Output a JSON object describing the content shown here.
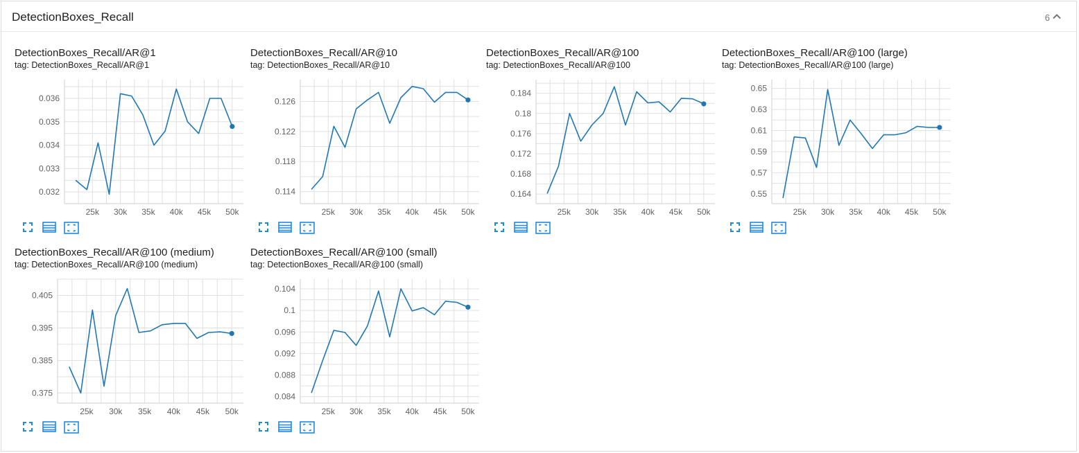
{
  "card": {
    "title": "DetectionBoxes_Recall",
    "count": "6",
    "collapse_icon": "chevron-up-icon"
  },
  "colors": {
    "line": "#1f77b4",
    "grid": "#e0e0e0",
    "axis": "#616161",
    "icon": "#1e88e5"
  },
  "charts": [
    {
      "title": "DetectionBoxes_Recall/AR@1",
      "tag": "tag: DetectionBoxes_Recall/AR@1"
    },
    {
      "title": "DetectionBoxes_Recall/AR@10",
      "tag": "tag: DetectionBoxes_Recall/AR@10"
    },
    {
      "title": "DetectionBoxes_Recall/AR@100",
      "tag": "tag: DetectionBoxes_Recall/AR@100"
    },
    {
      "title": "DetectionBoxes_Recall/AR@100 (large)",
      "tag": "tag: DetectionBoxes_Recall/AR@100 (large)"
    },
    {
      "title": "DetectionBoxes_Recall/AR@100 (medium)",
      "tag": "tag: DetectionBoxes_Recall/AR@100 (medium)"
    },
    {
      "title": "DetectionBoxes_Recall/AR@100 (small)",
      "tag": "tag: DetectionBoxes_Recall/AR@100 (small)"
    }
  ],
  "toolbar_icons": [
    "fullscreen-icon",
    "data-table-icon",
    "fit-domain-icon"
  ],
  "chart_data": [
    {
      "type": "line",
      "title": "DetectionBoxes_Recall/AR@1",
      "x": [
        22000,
        24000,
        26000,
        28000,
        30000,
        32000,
        34000,
        36000,
        38000,
        40000,
        42000,
        44000,
        46000,
        48000,
        50000
      ],
      "values": [
        0.0325,
        0.0321,
        0.0341,
        0.0319,
        0.0362,
        0.0361,
        0.0353,
        0.034,
        0.0346,
        0.0364,
        0.035,
        0.0345,
        0.036,
        0.036,
        0.0348
      ],
      "xlim": [
        20000,
        52000
      ],
      "ylim": [
        0.0315,
        0.0368
      ],
      "xticks": [
        25000,
        30000,
        35000,
        40000,
        45000,
        50000
      ],
      "xtick_labels": [
        "25k",
        "30k",
        "35k",
        "40k",
        "45k",
        "50k"
      ],
      "yticks": [
        0.032,
        0.033,
        0.034,
        0.035,
        0.036
      ],
      "ytick_labels": [
        "0.032",
        "0.033",
        "0.034",
        "0.035",
        "0.036"
      ],
      "grid": true
    },
    {
      "type": "line",
      "title": "DetectionBoxes_Recall/AR@10",
      "x": [
        22000,
        24000,
        26000,
        28000,
        30000,
        32000,
        34000,
        36000,
        38000,
        40000,
        42000,
        44000,
        46000,
        48000,
        50000
      ],
      "values": [
        0.1143,
        0.116,
        0.1227,
        0.1199,
        0.125,
        0.1262,
        0.1272,
        0.1231,
        0.1265,
        0.128,
        0.1277,
        0.1259,
        0.1272,
        0.1272,
        0.1262
      ],
      "xlim": [
        20000,
        52000
      ],
      "ylim": [
        0.1124,
        0.1289
      ],
      "xticks": [
        25000,
        30000,
        35000,
        40000,
        45000,
        50000
      ],
      "xtick_labels": [
        "25k",
        "30k",
        "35k",
        "40k",
        "45k",
        "50k"
      ],
      "yticks": [
        0.114,
        0.118,
        0.122,
        0.126
      ],
      "ytick_labels": [
        "0.114",
        "0.118",
        "0.122",
        "0.126"
      ],
      "grid": true
    },
    {
      "type": "line",
      "title": "DetectionBoxes_Recall/AR@100",
      "x": [
        22000,
        24000,
        26000,
        28000,
        30000,
        32000,
        34000,
        36000,
        38000,
        40000,
        42000,
        44000,
        46000,
        48000,
        50000
      ],
      "values": [
        0.1641,
        0.1695,
        0.18,
        0.1745,
        0.1777,
        0.18,
        0.1853,
        0.1777,
        0.1843,
        0.1821,
        0.1823,
        0.1803,
        0.183,
        0.1829,
        0.1819
      ],
      "xlim": [
        20000,
        52000
      ],
      "ylim": [
        0.1621,
        0.1867
      ],
      "xticks": [
        25000,
        30000,
        35000,
        40000,
        45000,
        50000
      ],
      "xtick_labels": [
        "25k",
        "30k",
        "35k",
        "40k",
        "45k",
        "50k"
      ],
      "yticks": [
        0.164,
        0.168,
        0.172,
        0.176,
        0.18,
        0.184
      ],
      "ytick_labels": [
        "0.164",
        "0.168",
        "0.172",
        "0.176",
        "0.18",
        "0.184"
      ],
      "grid": true
    },
    {
      "type": "line",
      "title": "DetectionBoxes_Recall/AR@100 (large)",
      "x": [
        22000,
        24000,
        26000,
        28000,
        30000,
        32000,
        34000,
        36000,
        38000,
        40000,
        42000,
        44000,
        46000,
        48000,
        50000
      ],
      "values": [
        0.546,
        0.604,
        0.603,
        0.575,
        0.649,
        0.596,
        0.62,
        0.607,
        0.593,
        0.606,
        0.606,
        0.608,
        0.614,
        0.613,
        0.613
      ],
      "xlim": [
        20000,
        52000
      ],
      "ylim": [
        0.5407,
        0.6583
      ],
      "xticks": [
        25000,
        30000,
        35000,
        40000,
        45000,
        50000
      ],
      "xtick_labels": [
        "25k",
        "30k",
        "35k",
        "40k",
        "45k",
        "50k"
      ],
      "yticks": [
        0.55,
        0.57,
        0.59,
        0.61,
        0.63,
        0.65
      ],
      "ytick_labels": [
        "0.55",
        "0.57",
        "0.59",
        "0.61",
        "0.63",
        "0.65"
      ],
      "grid": true
    },
    {
      "type": "line",
      "title": "DetectionBoxes_Recall/AR@100 (medium)",
      "x": [
        22000,
        24000,
        26000,
        28000,
        30000,
        32000,
        34000,
        36000,
        38000,
        40000,
        42000,
        44000,
        46000,
        48000,
        50000
      ],
      "values": [
        0.3831,
        0.375,
        0.4005,
        0.3771,
        0.3988,
        0.4071,
        0.3936,
        0.3941,
        0.396,
        0.3964,
        0.3964,
        0.3918,
        0.3936,
        0.3938,
        0.3933
      ],
      "xlim": [
        20000,
        52000
      ],
      "ylim": [
        0.3719,
        0.41
      ],
      "xticks": [
        25000,
        30000,
        35000,
        40000,
        45000,
        50000
      ],
      "xtick_labels": [
        "25k",
        "30k",
        "35k",
        "40k",
        "45k",
        "50k"
      ],
      "yticks": [
        0.375,
        0.385,
        0.395,
        0.405
      ],
      "ytick_labels": [
        "0.375",
        "0.385",
        "0.395",
        "0.405"
      ],
      "grid": true
    },
    {
      "type": "line",
      "title": "DetectionBoxes_Recall/AR@100 (small)",
      "x": [
        22000,
        24000,
        26000,
        28000,
        30000,
        32000,
        34000,
        36000,
        38000,
        40000,
        42000,
        44000,
        46000,
        48000,
        50000
      ],
      "values": [
        0.0847,
        0.0907,
        0.0963,
        0.0959,
        0.0935,
        0.0971,
        0.1036,
        0.0951,
        0.104,
        0.0999,
        0.1005,
        0.0992,
        0.1017,
        0.1015,
        0.1006
      ],
      "xlim": [
        20000,
        52000
      ],
      "ylim": [
        0.0828,
        0.1058
      ],
      "xticks": [
        25000,
        30000,
        35000,
        40000,
        45000,
        50000
      ],
      "xtick_labels": [
        "25k",
        "30k",
        "35k",
        "40k",
        "45k",
        "50k"
      ],
      "yticks": [
        0.084,
        0.088,
        0.092,
        0.096,
        0.1,
        0.104
      ],
      "ytick_labels": [
        "0.084",
        "0.088",
        "0.092",
        "0.096",
        "0.1",
        "0.104"
      ],
      "grid": true
    }
  ]
}
